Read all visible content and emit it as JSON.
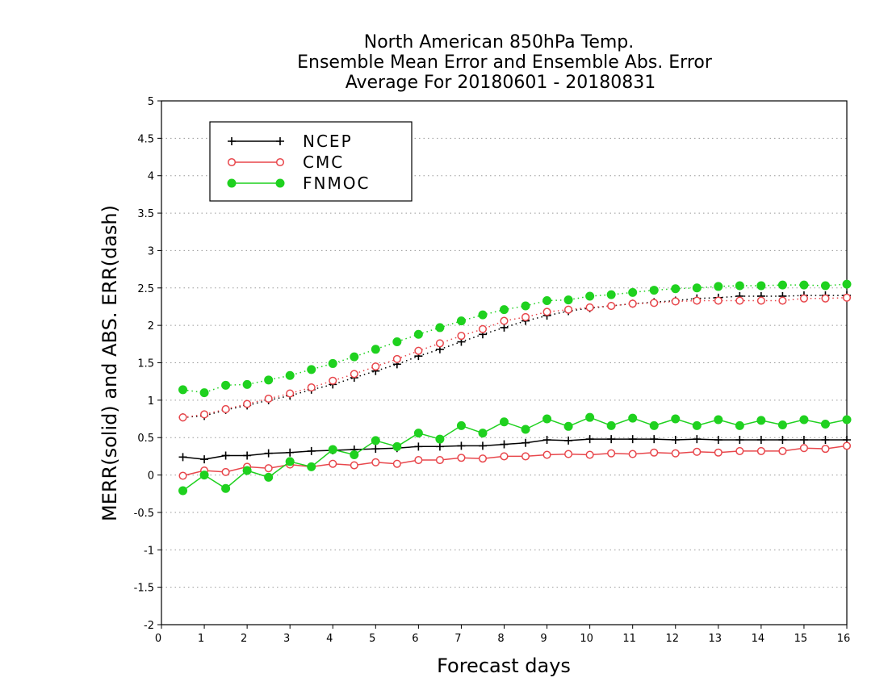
{
  "chart_data": {
    "type": "line",
    "title": [
      "North American 850hPa Temp.",
      "Ensemble Mean Error and Ensemble Abs. Error",
      "Average For 20180601 - 20180831"
    ],
    "xlabel": "Forecast days",
    "ylabel": "MERR(solid) and ABS. ERR(dash)",
    "xlim": [
      0,
      16
    ],
    "ylim": [
      -2,
      5
    ],
    "x_ticks": [
      0,
      1,
      2,
      3,
      4,
      5,
      6,
      7,
      8,
      9,
      10,
      11,
      12,
      13,
      14,
      15,
      16
    ],
    "y_ticks": [
      -2,
      -1.5,
      -1,
      -0.5,
      0,
      0.5,
      1,
      1.5,
      2,
      2.5,
      3,
      3.5,
      4,
      4.5,
      5
    ],
    "grid": "horizontal dotted",
    "legend_position": "top-left",
    "x": [
      0.5,
      1,
      1.5,
      2,
      2.5,
      3,
      3.5,
      4,
      4.5,
      5,
      5.5,
      6,
      6.5,
      7,
      7.5,
      8,
      8.5,
      9,
      9.5,
      10,
      10.5,
      11,
      11.5,
      12,
      12.5,
      13,
      13.5,
      14,
      14.5,
      15,
      15.5,
      16
    ],
    "series": [
      {
        "name": "NCEP",
        "color": "#000000",
        "marker": "plus",
        "merr": [
          0.24,
          0.21,
          0.26,
          0.26,
          0.29,
          0.3,
          0.32,
          0.33,
          0.34,
          0.35,
          0.36,
          0.38,
          0.38,
          0.39,
          0.39,
          0.41,
          0.43,
          0.47,
          0.46,
          0.48,
          0.48,
          0.48,
          0.48,
          0.47,
          0.48,
          0.47,
          0.47,
          0.47,
          0.47,
          0.47,
          0.47,
          0.47
        ],
        "abs_err": [
          0.77,
          0.79,
          0.87,
          0.93,
          1.0,
          1.06,
          1.14,
          1.21,
          1.3,
          1.39,
          1.48,
          1.59,
          1.68,
          1.78,
          1.88,
          1.97,
          2.06,
          2.13,
          2.19,
          2.23,
          2.26,
          2.29,
          2.31,
          2.33,
          2.36,
          2.37,
          2.39,
          2.39,
          2.39,
          2.4,
          2.4,
          2.4
        ]
      },
      {
        "name": "CMC",
        "color": "#e8474c",
        "marker": "open-circle",
        "merr": [
          -0.01,
          0.06,
          0.04,
          0.11,
          0.09,
          0.14,
          0.11,
          0.15,
          0.13,
          0.17,
          0.15,
          0.2,
          0.2,
          0.23,
          0.22,
          0.25,
          0.25,
          0.27,
          0.28,
          0.27,
          0.29,
          0.28,
          0.3,
          0.29,
          0.31,
          0.3,
          0.32,
          0.32,
          0.32,
          0.36,
          0.35,
          0.39
        ],
        "abs_err": [
          0.77,
          0.81,
          0.88,
          0.95,
          1.02,
          1.09,
          1.17,
          1.26,
          1.35,
          1.45,
          1.55,
          1.66,
          1.76,
          1.86,
          1.95,
          2.06,
          2.11,
          2.18,
          2.21,
          2.24,
          2.26,
          2.29,
          2.3,
          2.32,
          2.33,
          2.33,
          2.33,
          2.33,
          2.33,
          2.36,
          2.36,
          2.37
        ]
      },
      {
        "name": "FNMOC",
        "color": "#1fd11f",
        "marker": "filled-circle",
        "merr": [
          -0.21,
          0.0,
          -0.18,
          0.06,
          -0.03,
          0.18,
          0.11,
          0.34,
          0.27,
          0.46,
          0.38,
          0.56,
          0.48,
          0.66,
          0.56,
          0.71,
          0.61,
          0.75,
          0.65,
          0.77,
          0.66,
          0.76,
          0.66,
          0.75,
          0.66,
          0.74,
          0.66,
          0.73,
          0.67,
          0.74,
          0.68,
          0.74
        ],
        "abs_err": [
          1.14,
          1.1,
          1.2,
          1.21,
          1.27,
          1.33,
          1.41,
          1.49,
          1.58,
          1.68,
          1.78,
          1.88,
          1.97,
          2.06,
          2.14,
          2.21,
          2.26,
          2.33,
          2.34,
          2.39,
          2.41,
          2.44,
          2.47,
          2.49,
          2.5,
          2.52,
          2.53,
          2.53,
          2.54,
          2.54,
          2.53,
          2.55
        ]
      }
    ]
  }
}
